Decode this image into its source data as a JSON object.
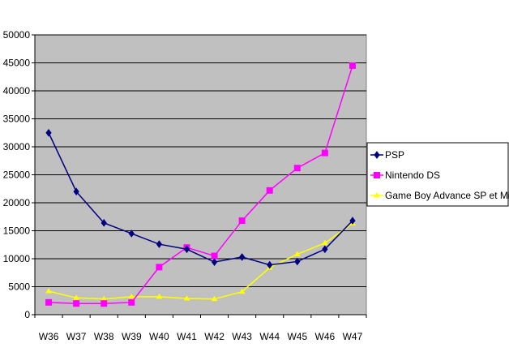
{
  "chart_data": {
    "type": "line",
    "title": "",
    "xlabel": "",
    "ylabel": "",
    "categories": [
      "W36",
      "W37",
      "W38",
      "W39",
      "W40",
      "W41",
      "W42",
      "W43",
      "W44",
      "W45",
      "W46",
      "W47"
    ],
    "ylim": [
      0,
      50000
    ],
    "yticks": [
      "0",
      "5000",
      "10000",
      "15000",
      "20000",
      "25000",
      "30000",
      "35000",
      "40000",
      "45000",
      "50000"
    ],
    "grid": true,
    "legend_position": "right",
    "plot_background": "#c0c0c0",
    "series": [
      {
        "name": "PSP",
        "color": "#000080",
        "marker": "diamond",
        "values": [
          32500,
          22000,
          16400,
          14500,
          12600,
          11700,
          9400,
          10300,
          8900,
          9500,
          11700,
          16800
        ]
      },
      {
        "name": "Nintendo DS",
        "color": "#ff00ff",
        "marker": "square",
        "values": [
          2200,
          2000,
          2000,
          2200,
          8500,
          12000,
          10500,
          16800,
          22200,
          26200,
          28900,
          44500
        ]
      },
      {
        "name": "Game Boy Advance SP et Micro",
        "color": "#ffff00",
        "marker": "triangle",
        "values": [
          4200,
          3000,
          2800,
          3200,
          3200,
          2900,
          2800,
          4100,
          8400,
          10800,
          12800,
          16300
        ]
      }
    ]
  }
}
